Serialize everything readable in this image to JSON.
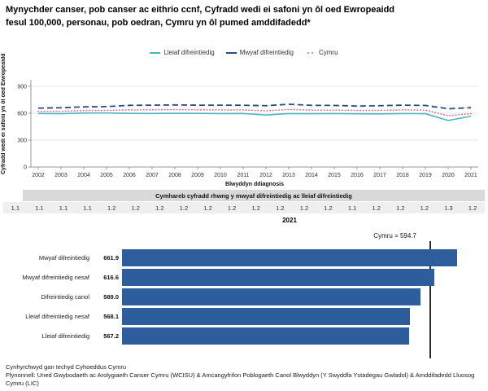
{
  "title_line1": "Mynychder canser, pob canser ac eithrio ccnf, Cyfradd wedi ei safoni yn ôl oed Ewropeaidd",
  "title_line2": "fesul 100,000, personau, pob oedran, Cymru yn ôl pumed amddifadedd*",
  "colors": {
    "least_deprived_line": "#4db6c2",
    "most_deprived_line": "#2b4a8b",
    "cymru_line": "#ec6090",
    "bar_blue": "#2e5d9e",
    "ratio_header_bg": "#d9d9d9",
    "ratio_row_bg": "#efefef"
  },
  "chart_data": [
    {
      "type": "line",
      "title": "",
      "xlabel": "Blwyddyn ddiagnosis",
      "ylabel": "Cyfradd wedi ei safoni yn ôl oed Ewropeaidd",
      "ylim": [
        0,
        900
      ],
      "yticks": [
        0,
        300,
        600,
        900
      ],
      "grid": true,
      "legend_position": "top-center",
      "x": [
        "2002",
        "2003",
        "2004",
        "2005",
        "2006",
        "2007",
        "2008",
        "2009",
        "2010",
        "2011",
        "2012",
        "2013",
        "2014",
        "2015",
        "2016",
        "2017",
        "2018",
        "2019",
        "2020",
        "2021"
      ],
      "series": [
        {
          "name": "Lleiaf difreintiedig",
          "color": "#4db6c2",
          "style": "solid",
          "width": 1.6,
          "values": [
            597,
            595,
            602,
            603,
            598,
            597,
            599,
            598,
            596,
            597,
            580,
            596,
            595,
            596,
            594,
            593,
            596,
            595,
            519,
            567.2
          ]
        },
        {
          "name": "Mwyaf difreintiedig",
          "color": "#2b4a8b",
          "style": "dashed",
          "dash": "7 4",
          "width": 1.8,
          "values": [
            657,
            661,
            671,
            674,
            688,
            690,
            693,
            690,
            690,
            689,
            684,
            700,
            688,
            687,
            680,
            684,
            690,
            687,
            650,
            661.9
          ]
        },
        {
          "name": "Cymru",
          "color": "#ec6090",
          "style": "dotted",
          "dash": "0.5 3.2",
          "linecap": "round",
          "width": 1.6,
          "values": [
            620,
            621,
            630,
            632,
            637,
            638,
            640,
            638,
            637,
            637,
            627,
            642,
            635,
            635,
            631,
            632,
            637,
            635,
            572,
            594.7
          ]
        }
      ]
    },
    {
      "type": "bar",
      "title": "2021",
      "orientation": "horizontal",
      "categories": [
        "Mwyaf difreintiedig",
        "Mwyaf difreintiedig nesaf",
        "Difreintiedig canol",
        "Lleiaf difreintiedig nesaf",
        "Lleiaf difreintiedig"
      ],
      "values": [
        661.9,
        616.6,
        589.0,
        568.1,
        567.2
      ],
      "value_labels": [
        "661.9",
        "616.6",
        "589.0",
        "568.1",
        "567.2"
      ],
      "xlim": [
        0,
        680
      ],
      "reference_line": {
        "label": "Cymru  =  594.7",
        "value": 594.7
      }
    }
  ],
  "ratio_strip": {
    "header": "Cymhareb cyfradd rhwng y mwyaf difreintiedig ac lleiaf difreintiedig",
    "values": [
      "1.1",
      "1.1",
      "1.1",
      "1.1",
      "1.2",
      "1.2",
      "1.2",
      "1.2",
      "1.2",
      "1.2",
      "1.2",
      "1.2",
      "1.2",
      "1.2",
      "1.1",
      "1.2",
      "1.2",
      "1.2",
      "1.3",
      "1.2"
    ]
  },
  "footer": {
    "produced_by": "Cynhyrchwyd gan Iechyd Cyhoeddus Cymru",
    "source": "Ffynonnell: Uned Gwybodaeth ac Arolygiaeth Canser Cymru (WCISU) & Amcangyfrifon Poblogaeth Canol Blwyddyn (Y Swyddfa Ystadegau Gwladol) & Amddifadedd Lluosog Cymru (LIC)"
  }
}
